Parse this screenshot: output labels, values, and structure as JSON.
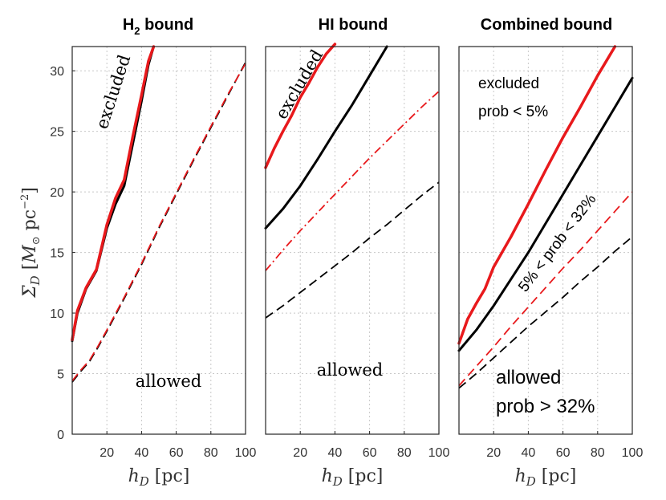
{
  "figure": {
    "ylabel": "ΣD [M⊙ pc⁻²]",
    "xlabel": "hD [pc]"
  },
  "colors": {
    "red": "#e8191c",
    "black": "#000000",
    "grid": "#c8c8c8"
  },
  "chart_data": [
    {
      "type": "line",
      "title": "H2 bound",
      "xlabel": "hD [pc]",
      "ylabel": "ΣD [M⊙ pc⁻²]",
      "xlim": [
        0,
        100
      ],
      "ylim": [
        0,
        32
      ],
      "xticks": [
        20,
        40,
        60,
        80,
        100
      ],
      "yticks": [
        0,
        5,
        10,
        15,
        20,
        25,
        30
      ],
      "grid": true,
      "annotations": [
        {
          "text": "excluded",
          "style": "serif"
        },
        {
          "text": "allowed",
          "style": "serif"
        }
      ],
      "series": [
        {
          "name": "black-solid",
          "color": "black",
          "dash": "solid",
          "width": 3,
          "x": [
            0,
            3,
            8,
            14,
            20,
            25,
            30,
            35,
            40,
            44,
            47
          ],
          "y": [
            7.7,
            10,
            12,
            13.5,
            17,
            19,
            20.5,
            24,
            27.5,
            30.5,
            32
          ]
        },
        {
          "name": "red-solid",
          "color": "red",
          "dash": "solid",
          "width": 3.5,
          "x": [
            0,
            3,
            8,
            14,
            20,
            25,
            30,
            35,
            40,
            44,
            47
          ],
          "y": [
            7.8,
            10.2,
            12.1,
            13.6,
            17.3,
            19.5,
            21,
            24.6,
            28,
            30.8,
            32
          ]
        },
        {
          "name": "black-dashed",
          "color": "black",
          "dash": "dashed",
          "width": 1.8,
          "x": [
            0,
            5,
            10,
            15,
            20,
            30,
            40,
            50,
            60,
            70,
            80,
            90,
            100
          ],
          "y": [
            4.3,
            5.2,
            6,
            7.2,
            8.5,
            11.2,
            14,
            17,
            19.8,
            22.6,
            25.3,
            28,
            30.7
          ]
        },
        {
          "name": "red-dashed",
          "color": "red",
          "dash": "dashed",
          "width": 1.8,
          "x": [
            0,
            5,
            10,
            15,
            20,
            30,
            40,
            50,
            60,
            70,
            80,
            90,
            100
          ],
          "y": [
            4.4,
            5.3,
            6.1,
            7.3,
            8.6,
            11.3,
            14.1,
            17.1,
            19.9,
            22.7,
            25.4,
            28.1,
            30.6
          ]
        }
      ]
    },
    {
      "type": "line",
      "title": "HI  bound",
      "xlabel": "hD [pc]",
      "xlim": [
        0,
        100
      ],
      "ylim": [
        0,
        32
      ],
      "xticks": [
        20,
        40,
        60,
        80,
        100
      ],
      "grid": true,
      "annotations": [
        {
          "text": "excluded",
          "style": "serif"
        },
        {
          "text": "allowed",
          "style": "serif"
        }
      ],
      "series": [
        {
          "name": "red-solid",
          "color": "red",
          "dash": "solid",
          "width": 3.5,
          "x": [
            0,
            5,
            10,
            15,
            20,
            25,
            30,
            35,
            40
          ],
          "y": [
            22,
            23.6,
            25,
            26.3,
            27.8,
            29,
            30.3,
            31.4,
            32.2
          ]
        },
        {
          "name": "black-solid",
          "color": "black",
          "dash": "solid",
          "width": 3,
          "x": [
            0,
            10,
            20,
            30,
            40,
            50,
            60,
            70
          ],
          "y": [
            17,
            18.6,
            20.5,
            22.7,
            25,
            27.2,
            29.6,
            32
          ]
        },
        {
          "name": "red-dashdot",
          "color": "red",
          "dash": "dashdot",
          "width": 1.8,
          "x": [
            0,
            10,
            20,
            30,
            40,
            50,
            60,
            70,
            80,
            90,
            100
          ],
          "y": [
            13.5,
            15.2,
            16.8,
            18.3,
            19.8,
            21.3,
            22.8,
            24.2,
            25.6,
            27,
            28.3
          ]
        },
        {
          "name": "black-dashed",
          "color": "black",
          "dash": "dashed",
          "width": 1.8,
          "x": [
            0,
            10,
            20,
            30,
            40,
            50,
            60,
            70,
            80,
            90,
            100
          ],
          "y": [
            9.6,
            10.6,
            11.7,
            12.8,
            13.9,
            15,
            16.2,
            17.3,
            18.5,
            19.7,
            20.8
          ]
        }
      ]
    },
    {
      "type": "line",
      "title": "Combined bound",
      "xlabel": "hD [pc]",
      "xlim": [
        0,
        100
      ],
      "ylim": [
        0,
        32
      ],
      "xticks": [
        20,
        40,
        60,
        80,
        100
      ],
      "grid": true,
      "annotations": [
        {
          "text": "excluded",
          "style": "sans"
        },
        {
          "text": "prob < 5%",
          "style": "sans"
        },
        {
          "text": "5% < prob < 32%",
          "style": "sans"
        },
        {
          "text": "allowed",
          "style": "sans"
        },
        {
          "text": "prob > 32%",
          "style": "sans"
        }
      ],
      "series": [
        {
          "name": "red-solid",
          "color": "red",
          "dash": "solid",
          "width": 3.5,
          "x": [
            0,
            5,
            10,
            15,
            20,
            30,
            40,
            50,
            60,
            70,
            80,
            90
          ],
          "y": [
            7.5,
            9.5,
            10.8,
            12,
            13.8,
            16.3,
            19,
            21.8,
            24.5,
            27,
            29.6,
            32
          ]
        },
        {
          "name": "black-solid",
          "color": "black",
          "dash": "solid",
          "width": 3,
          "x": [
            0,
            10,
            20,
            30,
            40,
            50,
            60,
            70,
            80,
            90,
            100
          ],
          "y": [
            6.9,
            8.6,
            10.6,
            12.8,
            15,
            17.4,
            19.8,
            22.2,
            24.6,
            27,
            29.4
          ]
        },
        {
          "name": "red-dashed",
          "color": "red",
          "dash": "dashed",
          "width": 1.8,
          "x": [
            0,
            10,
            20,
            30,
            40,
            50,
            60,
            70,
            80,
            90,
            100
          ],
          "y": [
            4,
            5.6,
            7.2,
            8.9,
            10.5,
            12.1,
            13.7,
            15.2,
            16.8,
            18.4,
            20
          ]
        },
        {
          "name": "black-dashed",
          "color": "black",
          "dash": "dashed",
          "width": 1.8,
          "x": [
            0,
            10,
            20,
            30,
            40,
            50,
            60,
            70,
            80,
            90,
            100
          ],
          "y": [
            3.8,
            5,
            6.3,
            7.6,
            8.9,
            10.1,
            11.3,
            12.6,
            13.8,
            15.1,
            16.3
          ]
        }
      ]
    }
  ]
}
